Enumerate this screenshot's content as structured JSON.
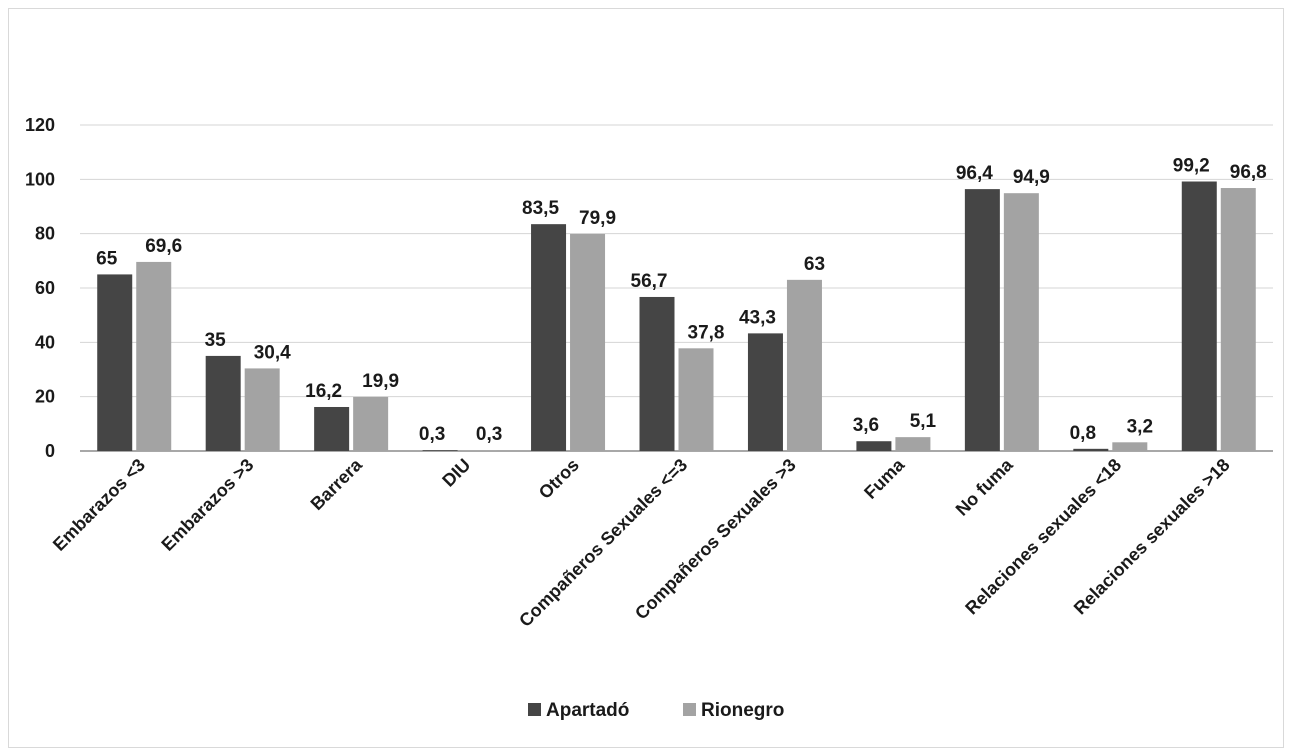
{
  "chart_data": {
    "type": "bar",
    "title": "",
    "xlabel": "",
    "ylabel": "",
    "ylim": [
      0,
      120
    ],
    "yticks": [
      0,
      20,
      40,
      60,
      80,
      100,
      120
    ],
    "grid": true,
    "legend_position": "bottom",
    "categories": [
      "Embarazos <3",
      "Embarazos >3",
      "Barrera",
      "DIU",
      "Otros",
      "Compañeros Sexuales <=3",
      "Compañeros Sexuales >3",
      "Fuma",
      "No fuma",
      "Relaciones sexuales <18",
      "Relaciones sexuales >18"
    ],
    "series": [
      {
        "name": "Apartadó",
        "color": "#454545",
        "values": [
          65,
          35,
          16.2,
          0.3,
          83.5,
          56.7,
          43.3,
          3.6,
          96.4,
          0.8,
          99.2
        ],
        "labels": [
          "65",
          "35",
          "16,2",
          "0,3",
          "83,5",
          "56,7",
          "43,3",
          "3,6",
          "96,4",
          "0,8",
          "99,2"
        ]
      },
      {
        "name": "Rionegro",
        "color": "#a3a3a3",
        "values": [
          69.6,
          30.4,
          19.9,
          0.3,
          79.9,
          37.8,
          63,
          5.1,
          94.9,
          3.2,
          96.8
        ],
        "labels": [
          "69,6",
          "30,4",
          "19,9",
          "0,3",
          "79,9",
          "37,8",
          "63",
          "5,1",
          "94,9",
          "3,2",
          "96,8"
        ]
      }
    ]
  }
}
